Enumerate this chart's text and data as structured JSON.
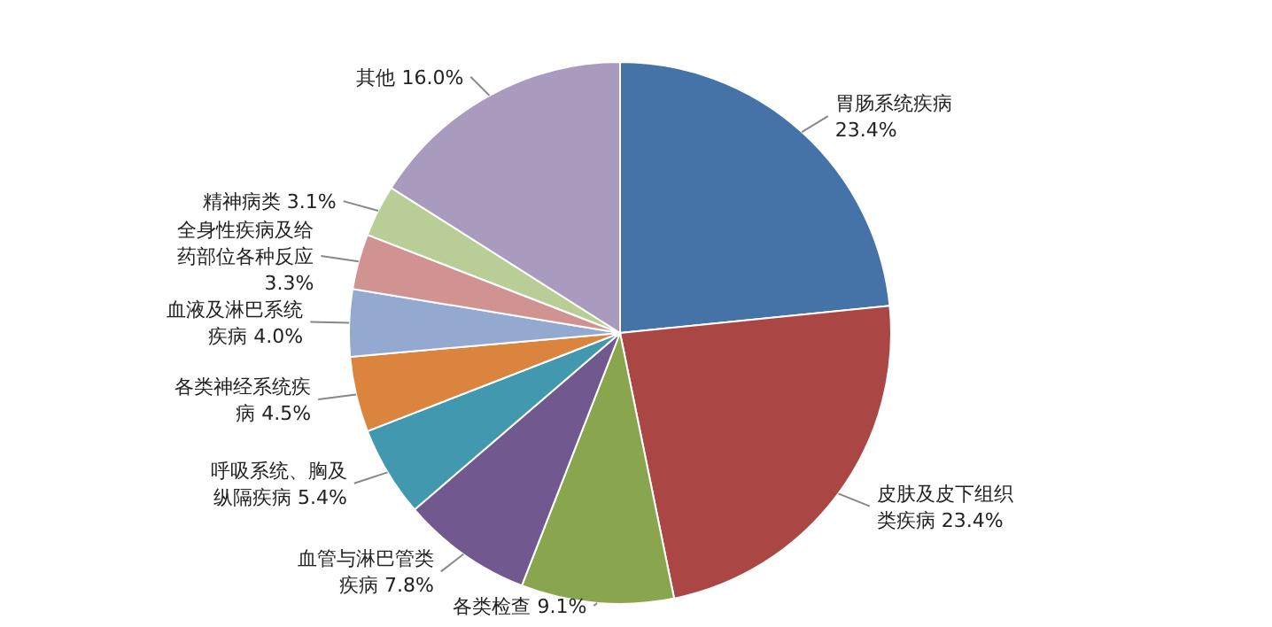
{
  "chart_data": {
    "type": "pie",
    "categories": [
      "胃肠系统疾病",
      "皮肤及皮下组织类疾病",
      "各类检查",
      "血管与淋巴管类疾病",
      "呼吸系统、胸及纵隔疾病",
      "各类神经系统疾病",
      "血液及淋巴系统疾病",
      "全身性疾病及给药部位各种反应",
      "精神病类",
      "其他"
    ],
    "values": [
      23.4,
      23.4,
      9.1,
      7.8,
      5.4,
      4.5,
      4.0,
      3.3,
      3.1,
      16.0
    ],
    "colors": [
      "#4572a7",
      "#aa4643",
      "#89a54e",
      "#71588f",
      "#4198af",
      "#db843d",
      "#93a9cf",
      "#d19392",
      "#b9cd96",
      "#a99bbd"
    ],
    "value_labels": [
      "23.4%",
      "23.4%",
      "9.1%",
      "7.8%",
      "5.4%",
      "4.5%",
      "4.0%",
      "3.3%",
      "3.1%",
      "16.0%"
    ]
  }
}
